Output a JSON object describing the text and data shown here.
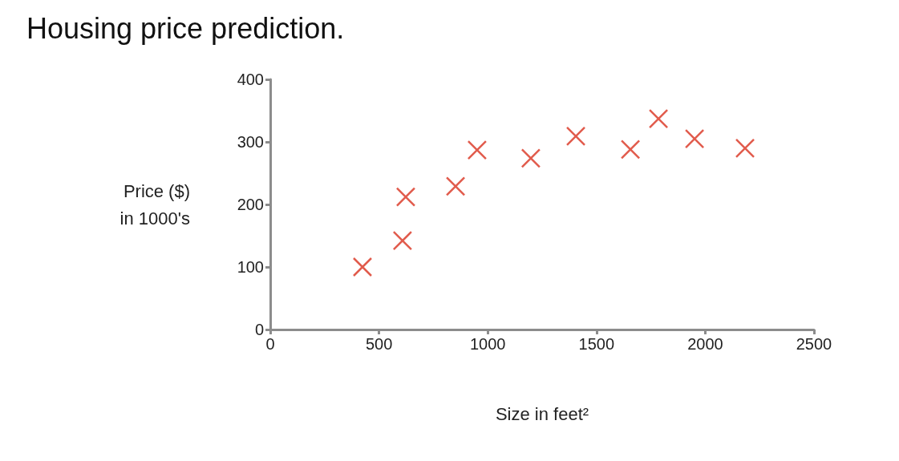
{
  "chart_data": {
    "type": "scatter",
    "title": "Housing price prediction.",
    "xlabel": "Size in feet²",
    "ylabel": "Price ($)\nin 1000's",
    "x": [
      424,
      608,
      623,
      852,
      951,
      1198,
      1405,
      1656,
      1785,
      1951,
      2183
    ],
    "series": [
      {
        "color": "#d9321f",
        "values": [
          100,
          142,
          212,
          229,
          287,
          274,
          309,
          288,
          337,
          305,
          290
        ]
      }
    ],
    "xlim": [
      0,
      2500
    ],
    "xticks": [
      0,
      500,
      1000,
      1500,
      2000,
      2500
    ],
    "ylim": [
      0,
      400
    ],
    "yticks": [
      0,
      100,
      200,
      300,
      400
    ],
    "grid": false,
    "marker": "cross"
  }
}
